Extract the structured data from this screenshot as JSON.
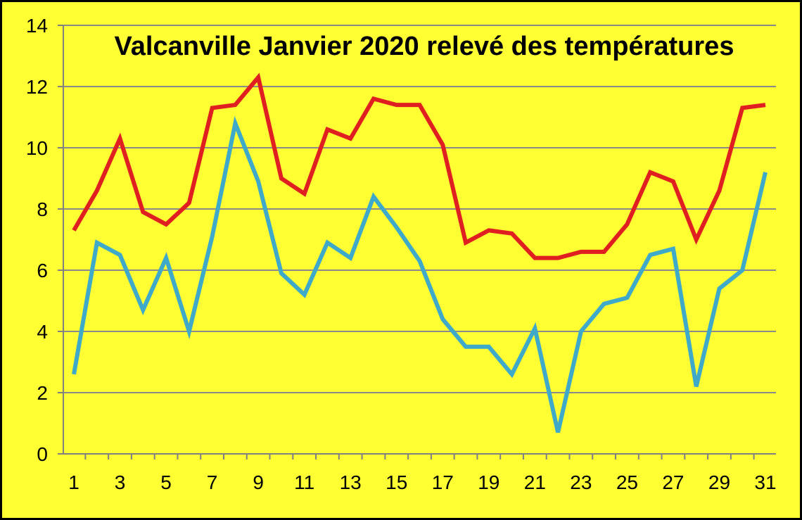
{
  "chart_data": {
    "type": "line",
    "title": "Valcanville Janvier 2020 relevé des températures",
    "xlabel": "",
    "ylabel": "",
    "x": [
      1,
      2,
      3,
      4,
      5,
      6,
      7,
      8,
      9,
      10,
      11,
      12,
      13,
      14,
      15,
      16,
      17,
      18,
      19,
      20,
      21,
      22,
      23,
      24,
      25,
      26,
      27,
      28,
      29,
      30,
      31
    ],
    "x_tick_labels": [
      "1",
      "3",
      "5",
      "7",
      "9",
      "11",
      "13",
      "15",
      "17",
      "19",
      "21",
      "23",
      "25",
      "27",
      "29",
      "31"
    ],
    "y_tick_labels": [
      "0",
      "2",
      "4",
      "6",
      "8",
      "10",
      "12",
      "14"
    ],
    "ylim": [
      0,
      14
    ],
    "xlim": [
      1,
      31
    ],
    "grid": "horizontal",
    "background_color": "#ffff33",
    "series": [
      {
        "color": "#e02020",
        "values": [
          7.3,
          8.6,
          10.3,
          7.9,
          7.5,
          8.2,
          11.3,
          11.4,
          12.3,
          9.0,
          8.5,
          10.6,
          10.3,
          11.6,
          11.4,
          11.4,
          10.1,
          6.9,
          7.3,
          7.2,
          6.4,
          6.4,
          6.6,
          6.6,
          7.5,
          9.2,
          8.9,
          7.0,
          8.6,
          11.3,
          11.4
        ]
      },
      {
        "color": "#3fa9c9",
        "values": [
          2.6,
          6.9,
          6.5,
          4.7,
          6.4,
          4.0,
          7.1,
          10.8,
          8.9,
          5.9,
          5.2,
          6.9,
          6.4,
          8.4,
          7.4,
          6.3,
          4.4,
          3.5,
          3.5,
          2.6,
          4.1,
          0.7,
          4.0,
          4.9,
          5.1,
          6.5,
          6.7,
          2.2,
          5.4,
          6.0,
          9.2
        ]
      }
    ]
  }
}
